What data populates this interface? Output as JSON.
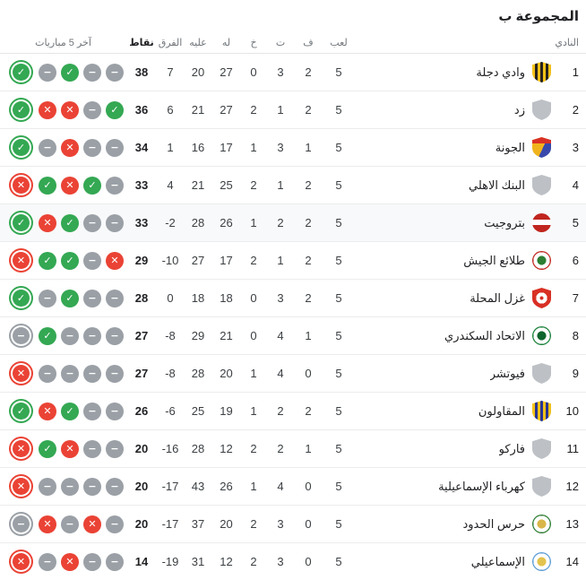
{
  "title": "المجموعة ب",
  "columns": {
    "club": "النادي",
    "played": "لعب",
    "won": "ف",
    "draw": "ت",
    "lost": "خ",
    "for": "له",
    "against": "عليه",
    "diff": "الفرق",
    "points": "نقاط",
    "last5": "آخر 5 مباريات"
  },
  "form_icons": {
    "win": {
      "symbol": "✓",
      "color": "#34a853",
      "meaning": "فوز"
    },
    "loss": {
      "symbol": "✕",
      "color": "#ea4335",
      "meaning": "خسارة"
    },
    "draw": {
      "symbol": "−",
      "color": "#9aa0a6",
      "meaning": "تعادل"
    }
  },
  "colors": {
    "highlight_row": "#f8f9fa",
    "divider": "#ebecee",
    "header_text": "#70757a",
    "text_primary": "#202124",
    "text_secondary": "#3c4043"
  },
  "teams": [
    {
      "rank": 1,
      "name": "وادي دجلة",
      "played": 5,
      "won": 2,
      "draw": 3,
      "lost": 0,
      "for": 27,
      "against": 20,
      "diff": "7",
      "points": 38,
      "highlighted": false,
      "form": [
        "win",
        "draw",
        "win",
        "draw",
        "draw"
      ],
      "logo": {
        "shape": "shield",
        "pattern": "stripes",
        "colors": [
          "#f3c217",
          "#27231f"
        ]
      }
    },
    {
      "rank": 2,
      "name": "زد",
      "played": 5,
      "won": 2,
      "draw": 1,
      "lost": 2,
      "for": 27,
      "against": 21,
      "diff": "6",
      "points": 36,
      "highlighted": false,
      "form": [
        "win",
        "loss",
        "loss",
        "draw",
        "win"
      ],
      "logo": {
        "shape": "shield",
        "pattern": "solid",
        "colors": [
          "#bdc1c6"
        ]
      }
    },
    {
      "rank": 3,
      "name": "الجونة",
      "played": 5,
      "won": 1,
      "draw": 3,
      "lost": 1,
      "for": 17,
      "against": 16,
      "diff": "1",
      "points": 34,
      "highlighted": false,
      "form": [
        "win",
        "draw",
        "loss",
        "draw",
        "draw"
      ],
      "logo": {
        "shape": "shield",
        "pattern": "split3",
        "colors": [
          "#d93025",
          "#f1b31c",
          "#3949ab"
        ]
      }
    },
    {
      "rank": 4,
      "name": "البنك الاهلي",
      "played": 5,
      "won": 2,
      "draw": 1,
      "lost": 2,
      "for": 25,
      "against": 21,
      "diff": "4",
      "points": 33,
      "highlighted": false,
      "form": [
        "loss",
        "win",
        "loss",
        "win",
        "draw"
      ],
      "logo": {
        "shape": "shield",
        "pattern": "solid",
        "colors": [
          "#bdc1c6"
        ]
      }
    },
    {
      "rank": 5,
      "name": "بتروجيت",
      "played": 5,
      "won": 2,
      "draw": 2,
      "lost": 1,
      "for": 26,
      "against": 28,
      "diff": "-2",
      "points": 33,
      "highlighted": true,
      "form": [
        "win",
        "loss",
        "win",
        "draw",
        "draw"
      ],
      "logo": {
        "shape": "circle",
        "pattern": "band",
        "colors": [
          "#c0261f",
          "#ffffff"
        ]
      }
    },
    {
      "rank": 6,
      "name": "طلائع الجيش",
      "played": 5,
      "won": 2,
      "draw": 1,
      "lost": 2,
      "for": 17,
      "against": 27,
      "diff": "-10",
      "points": 29,
      "highlighted": false,
      "form": [
        "loss",
        "win",
        "win",
        "draw",
        "loss"
      ],
      "logo": {
        "shape": "circle",
        "pattern": "ring",
        "colors": [
          "#c0261f",
          "#2e7d32"
        ]
      }
    },
    {
      "rank": 7,
      "name": "غزل المحلة",
      "played": 5,
      "won": 2,
      "draw": 3,
      "lost": 0,
      "for": 18,
      "against": 18,
      "diff": "0",
      "points": 28,
      "highlighted": false,
      "form": [
        "win",
        "draw",
        "win",
        "draw",
        "draw"
      ],
      "logo": {
        "shape": "shield",
        "pattern": "dot",
        "colors": [
          "#d93025",
          "#ffffff"
        ]
      }
    },
    {
      "rank": 8,
      "name": "الاتحاد السكندري",
      "played": 5,
      "won": 1,
      "draw": 4,
      "lost": 0,
      "for": 21,
      "against": 29,
      "diff": "-8",
      "points": 27,
      "highlighted": false,
      "form": [
        "draw",
        "win",
        "draw",
        "draw",
        "draw"
      ],
      "logo": {
        "shape": "circle",
        "pattern": "ring",
        "colors": [
          "#188038",
          "#0d652d"
        ]
      }
    },
    {
      "rank": 9,
      "name": "فيوتشر",
      "played": 5,
      "won": 0,
      "draw": 4,
      "lost": 1,
      "for": 20,
      "against": 28,
      "diff": "-8",
      "points": 27,
      "highlighted": false,
      "form": [
        "loss",
        "draw",
        "draw",
        "draw",
        "draw"
      ],
      "logo": {
        "shape": "shield",
        "pattern": "solid",
        "colors": [
          "#bdc1c6"
        ]
      }
    },
    {
      "rank": 10,
      "name": "المقاولون",
      "played": 5,
      "won": 2,
      "draw": 2,
      "lost": 1,
      "for": 19,
      "against": 25,
      "diff": "-6",
      "points": 26,
      "highlighted": false,
      "form": [
        "win",
        "loss",
        "win",
        "draw",
        "draw"
      ],
      "logo": {
        "shape": "shield",
        "pattern": "stripes",
        "colors": [
          "#f3c217",
          "#283593"
        ]
      }
    },
    {
      "rank": 11,
      "name": "فاركو",
      "played": 5,
      "won": 1,
      "draw": 2,
      "lost": 2,
      "for": 12,
      "against": 28,
      "diff": "-16",
      "points": 20,
      "highlighted": false,
      "form": [
        "loss",
        "win",
        "loss",
        "draw",
        "draw"
      ],
      "logo": {
        "shape": "shield",
        "pattern": "solid",
        "colors": [
          "#bdc1c6"
        ]
      }
    },
    {
      "rank": 12,
      "name": "كهرباء الإسماعيلية",
      "played": 5,
      "won": 0,
      "draw": 4,
      "lost": 1,
      "for": 26,
      "against": 43,
      "diff": "-17",
      "points": 20,
      "highlighted": false,
      "form": [
        "loss",
        "draw",
        "draw",
        "draw",
        "draw"
      ],
      "logo": {
        "shape": "shield",
        "pattern": "solid",
        "colors": [
          "#bdc1c6"
        ]
      }
    },
    {
      "rank": 13,
      "name": "حرس الحدود",
      "played": 5,
      "won": 0,
      "draw": 3,
      "lost": 2,
      "for": 20,
      "against": 37,
      "diff": "-17",
      "points": 20,
      "highlighted": false,
      "form": [
        "draw",
        "loss",
        "draw",
        "loss",
        "draw"
      ],
      "logo": {
        "shape": "circle",
        "pattern": "ring",
        "colors": [
          "#2e7d32",
          "#d9b64a"
        ]
      }
    },
    {
      "rank": 14,
      "name": "الإسماعيلي",
      "played": 5,
      "won": 0,
      "draw": 3,
      "lost": 2,
      "for": 12,
      "against": 31,
      "diff": "-19",
      "points": 14,
      "highlighted": false,
      "form": [
        "loss",
        "draw",
        "loss",
        "draw",
        "draw"
      ],
      "logo": {
        "shape": "circle",
        "pattern": "ring",
        "colors": [
          "#5b9bd5",
          "#e3c34f"
        ]
      }
    }
  ]
}
